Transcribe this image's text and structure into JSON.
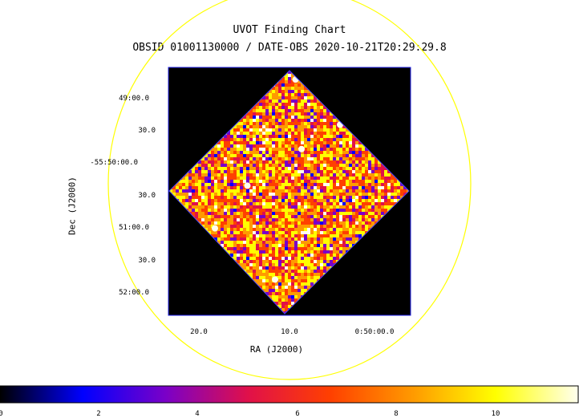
{
  "chart_data": {
    "type": "heatmap",
    "title": "UVOT Finding Chart",
    "subtitle": "OBSID 01001130000 / DATE-OBS 2020-10-21T20:29:29.8",
    "xlabel": "RA (J2000)",
    "ylabel": "Dec (J2000)",
    "x_ticks": [
      "20.0",
      "10.0",
      "0:50:00.0"
    ],
    "y_ticks": [
      "49:00.0",
      "30.0",
      "-55:50:00.0",
      "30.0",
      "51:00.0",
      "30.0",
      "52:00.0"
    ],
    "colorbar": {
      "ticks": [
        "0",
        "2",
        "4",
        "6",
        "8",
        "10"
      ],
      "range": [
        0,
        11.6
      ],
      "colormap": [
        "#000000",
        "#0000ff",
        "#7a00c8",
        "#e0104a",
        "#ff4000",
        "#ff9a00",
        "#ffff00",
        "#ffffee"
      ]
    },
    "colors": {
      "circle": "#ffff00",
      "frame": "#2222ee",
      "background": "#000000"
    },
    "bright_sources": [
      {
        "ra_offset": 0.05,
        "dec_offset": 0.92
      },
      {
        "ra_offset": 0.42,
        "dec_offset": 0.55
      },
      {
        "ra_offset": -0.35,
        "dec_offset": 0.05
      },
      {
        "ra_offset": -0.12,
        "dec_offset": -0.72
      },
      {
        "ra_offset": -0.62,
        "dec_offset": -0.3
      },
      {
        "ra_offset": 0.1,
        "dec_offset": 0.35
      }
    ]
  }
}
